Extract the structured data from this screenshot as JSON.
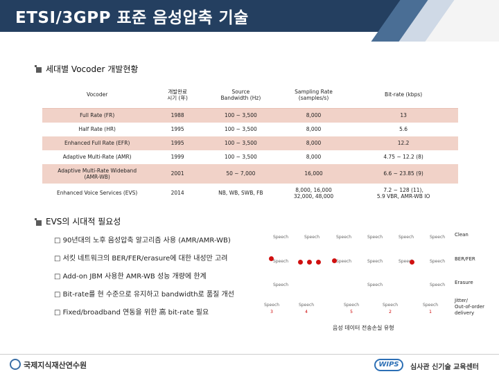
{
  "header": {
    "title": "ETSI/3GPP 표준 음성압축 기술"
  },
  "section1": {
    "title": "세대별 Vocoder 개발현황"
  },
  "table": {
    "headers": [
      "Vocoder",
      "개발완료\n시기 (年)",
      "Source\nBandwidth (Hz)",
      "Sampling Rate\n(samples/s)",
      "Bit-rate (kbps)"
    ],
    "rows": [
      [
        "Full Rate (FR)",
        "1988",
        "100 ~ 3,500",
        "8,000",
        "13"
      ],
      [
        "Half Rate (HR)",
        "1995",
        "100 ~ 3,500",
        "8,000",
        "5.6"
      ],
      [
        "Enhanced Full Rate (EFR)",
        "1995",
        "100 ~ 3,500",
        "8,000",
        "12.2"
      ],
      [
        "Adaptive Multi-Rate (AMR)",
        "1999",
        "100 ~ 3,500",
        "8,000",
        "4.75 ~ 12.2 (8)"
      ],
      [
        "Adaptive Multi-Rate Wideband\n(AMR-WB)",
        "2001",
        "50 ~ 7,000",
        "16,000",
        "6.6 ~ 23.85 (9)"
      ],
      [
        "Enhanced Voice Services (EVS)",
        "2014",
        "NB, WB, SWB, FB",
        "8,000, 16,000\n32,000, 48,000",
        "7.2 ~ 128 (11),\n5.9 VBR, AMR-WB IO"
      ]
    ]
  },
  "section2": {
    "title": "EVS의 시대적 필요성"
  },
  "evs_items": [
    "90년대의 노후 음성압축 알고리즘 사용 (AMR/AMR-WB)",
    "서킷 네트워크의 BER/FER/erasure에 대한 내성만 고려",
    "Add-on JBM 사용한 AMR-WB 성능 개량에 한계",
    "Bit-rate를 현 수준으로 유지하고 bandwidth로 품질 개선",
    "Fixed/broadband 연동을 위한 高 bit-rate 필요"
  ],
  "diagram": {
    "speech_label": "Speech",
    "rows": [
      {
        "label": "Clean"
      },
      {
        "label": "BER/FER"
      },
      {
        "label": "Erasure"
      },
      {
        "label": "Jitter/\nOut-of-order\ndelivery"
      }
    ],
    "jitter_numbers": [
      "3",
      "4",
      "5",
      "2",
      "1"
    ],
    "caption": "음성 데이터 전송손실 유형"
  },
  "footer": {
    "org": "국제지식재산연수원",
    "wips": "WIPS",
    "right": "심사관 신기술 교육센터"
  }
}
